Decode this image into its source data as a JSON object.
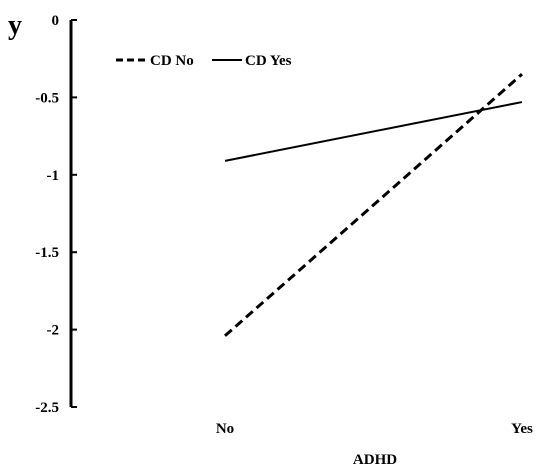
{
  "chart_data": {
    "type": "line",
    "ylabel": "y",
    "xlabel": "ADHD",
    "categories": [
      "No",
      "Yes"
    ],
    "ylim": [
      -2.5,
      0
    ],
    "yticks": [
      0,
      -0.5,
      -1,
      -1.5,
      -2,
      -2.5
    ],
    "ytick_labels": [
      "0",
      "-0.5",
      "-1",
      "-1.5",
      "-2",
      "-2.5"
    ],
    "grid": false,
    "legend_position": "top-left",
    "series": [
      {
        "name": "CD No",
        "values": [
          -2.04,
          -0.35
        ],
        "style": "dashed",
        "color": "#000000"
      },
      {
        "name": "CD Yes",
        "values": [
          -0.91,
          -0.53
        ],
        "style": "solid",
        "color": "#000000"
      }
    ]
  }
}
